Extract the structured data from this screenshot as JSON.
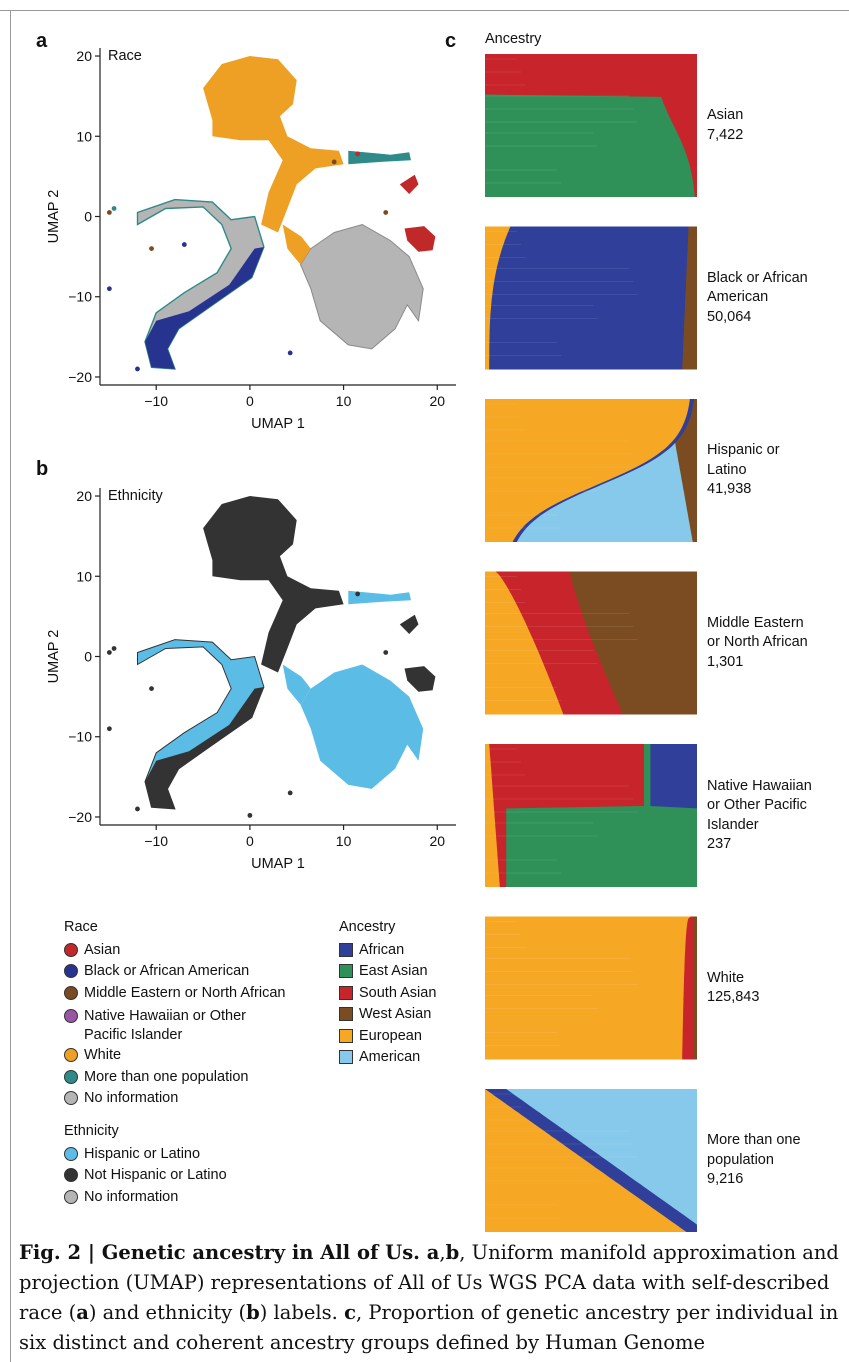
{
  "colors": {
    "asian": "#c0282a",
    "black": "#27348f",
    "mena": "#7a4a22",
    "nhpi": "#9a55a5",
    "white": "#eea025",
    "multi": "#2f8a8a",
    "noinfo": "#b5b5b5",
    "hispanic": "#5bbde6",
    "nonhispanic": "#333333",
    "african": "#2f3f9a",
    "east_asian": "#2f9158",
    "south_asian": "#c7252b",
    "west_asian": "#7b4c22",
    "european": "#f6a723",
    "american": "#87c9ea"
  },
  "panel_a": {
    "letter": "a",
    "title": "Race"
  },
  "panel_b": {
    "letter": "b",
    "title": "Ethnicity"
  },
  "panel_c": {
    "letter": "c",
    "title": "Ancestry"
  },
  "chart_data": [
    {
      "type": "scatter",
      "title": "Race",
      "xlabel": "UMAP 1",
      "ylabel": "UMAP 2",
      "xlim": [
        -16,
        22
      ],
      "ylim": [
        -21,
        21
      ],
      "xticks": [
        -10,
        0,
        10,
        20
      ],
      "xtick_labels": [
        "−10",
        "0",
        "10",
        "20"
      ],
      "yticks": [
        -20,
        -10,
        0,
        10,
        20
      ],
      "ytick_labels": [
        "−20",
        "−10",
        "0",
        "10",
        "20"
      ],
      "series_note": "clusters coloured by self-described race"
    },
    {
      "type": "scatter",
      "title": "Ethnicity",
      "xlabel": "UMAP 1",
      "ylabel": "UMAP 2",
      "xlim": [
        -16,
        22
      ],
      "ylim": [
        -21,
        21
      ],
      "xticks": [
        -10,
        0,
        10,
        20
      ],
      "xtick_labels": [
        "−10",
        "0",
        "10",
        "20"
      ],
      "yticks": [
        -20,
        -10,
        0,
        10,
        20
      ],
      "ytick_labels": [
        "−20",
        "−10",
        "0",
        "10",
        "20"
      ]
    },
    {
      "type": "area",
      "title": "Ancestry",
      "groups": [
        {
          "label_lines": [
            "Asian",
            "7,422"
          ],
          "n": 7422,
          "key": "asian"
        },
        {
          "label_lines": [
            "Black or African",
            "American",
            "50,064"
          ],
          "n": 50064,
          "key": "black"
        },
        {
          "label_lines": [
            "Hispanic or",
            "Latino",
            "41,938"
          ],
          "n": 41938,
          "key": "hisp"
        },
        {
          "label_lines": [
            "Middle Eastern",
            "or North African",
            "1,301"
          ],
          "n": 1301,
          "key": "mena"
        },
        {
          "label_lines": [
            "Native Hawaiian",
            "or Other Pacific",
            "Islander",
            "237"
          ],
          "n": 237,
          "key": "nhpi"
        },
        {
          "label_lines": [
            "White",
            "125,843"
          ],
          "n": 125843,
          "key": "white"
        },
        {
          "label_lines": [
            "More than one",
            "population",
            "9,216"
          ],
          "n": 9216,
          "key": "multi"
        }
      ]
    }
  ],
  "legend_race": {
    "title": "Race",
    "items": [
      {
        "label": "Asian",
        "color": "#c0282a"
      },
      {
        "label": "Black or African American",
        "color": "#27348f"
      },
      {
        "label": "Middle Eastern or North African",
        "color": "#7a4a22"
      },
      {
        "label": "Native Hawaiian or Other",
        "label2": "Pacific Islander",
        "color": "#9a55a5"
      },
      {
        "label": "White",
        "color": "#eea025"
      },
      {
        "label": "More than one population",
        "color": "#2f8a8a"
      },
      {
        "label": "No information",
        "color": "#b5b5b5"
      }
    ]
  },
  "legend_ethnicity": {
    "title": "Ethnicity",
    "items": [
      {
        "label": "Hispanic or Latino",
        "color": "#5bbde6"
      },
      {
        "label": "Not Hispanic or Latino",
        "color": "#333333"
      },
      {
        "label": "No information",
        "color": "#b5b5b5"
      }
    ]
  },
  "legend_ancestry": {
    "title": "Ancestry",
    "items": [
      {
        "label": "African",
        "color": "#2f3f9a"
      },
      {
        "label": "East Asian",
        "color": "#2f9158"
      },
      {
        "label": "South Asian",
        "color": "#c7252b"
      },
      {
        "label": "West Asian",
        "color": "#7b4c22"
      },
      {
        "label": "European",
        "color": "#f6a723"
      },
      {
        "label": "American",
        "color": "#87c9ea"
      }
    ]
  },
  "caption": {
    "head": "Fig. 2 | Genetic ancestry in All of Us.",
    "p1": " a",
    "p2": ",",
    "p3": "b",
    "p4": ", Uniform manifold approximation and projection (UMAP) representations of All of Us WGS PCA data with self-described race (",
    "p5": "a",
    "p6": ") and ethnicity (",
    "p7": "b",
    "p8": ") labels. ",
    "p9": "c",
    "p10": ", Proportion of genetic ancestry per individual in six distinct and coherent ancestry groups defined by Human Genome"
  }
}
